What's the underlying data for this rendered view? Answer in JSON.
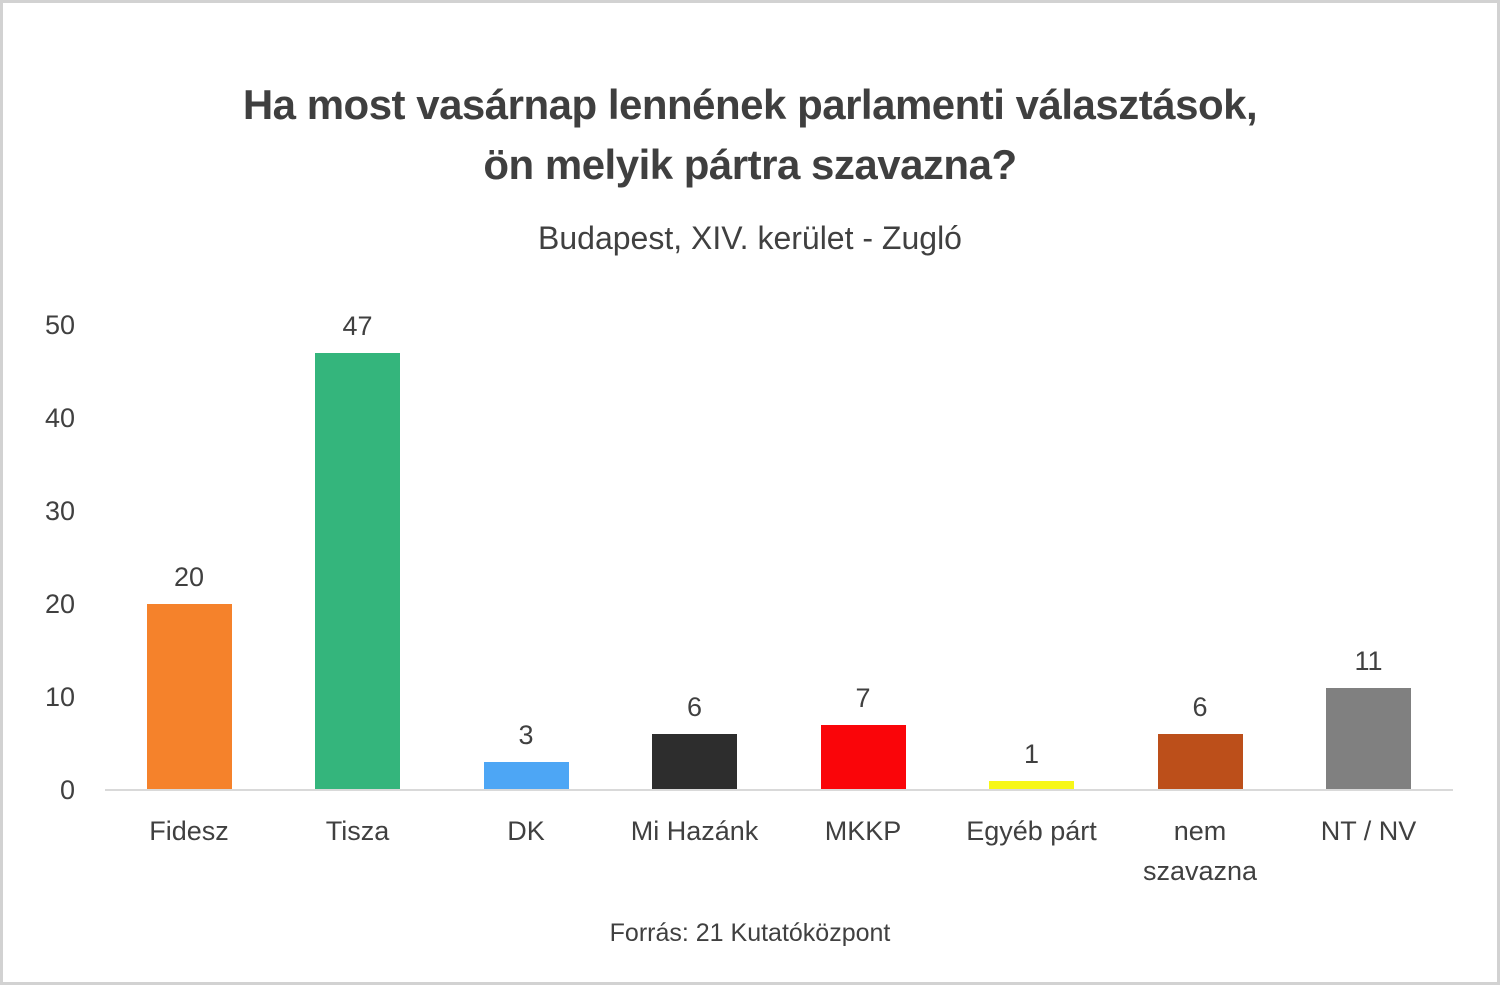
{
  "title": {
    "line1": "Ha most vasárnap lennének parlamenti választások,",
    "line2": "ön melyik pártra szavazna?"
  },
  "subtitle": "Budapest, XIV. kerület - Zugló",
  "footer": "Forrás: 21 Kutatóközpont",
  "colors": {
    "text": "#404040",
    "title_text": "#3f3f3f",
    "axis_line": "#d9d9d9",
    "page_border": "#d2d2d2"
  },
  "chart_data": {
    "type": "bar",
    "title": "Ha most vasárnap lennének parlamenti választások, ön melyik pártra szavazna?",
    "subtitle": "Budapest, XIV. kerület - Zugló",
    "source": "Forrás: 21 Kutatóközpont",
    "categories": [
      "Fidesz",
      "Tisza",
      "DK",
      "Mi Hazánk",
      "MKKP",
      "Egyéb párt",
      "nem szavazna",
      "NT / NV"
    ],
    "categories_display": [
      [
        "Fidesz"
      ],
      [
        "Tisza"
      ],
      [
        "DK"
      ],
      [
        "Mi Hazánk"
      ],
      [
        "MKKP"
      ],
      [
        "Egyéb párt"
      ],
      [
        "nem",
        "szavazna"
      ],
      [
        "NT / NV"
      ]
    ],
    "values": [
      20,
      47,
      3,
      6,
      7,
      1,
      6,
      11
    ],
    "bar_colors": [
      "#f5822b",
      "#34b57c",
      "#4da6f5",
      "#2d2d2d",
      "#fa0509",
      "#f7f718",
      "#bc4f1a",
      "#808080"
    ],
    "xlabel": "",
    "ylabel": "",
    "ylim": [
      0,
      50
    ],
    "y_ticks": [
      0,
      10,
      20,
      30,
      40,
      50
    ],
    "grid": false,
    "legend": false,
    "value_labels": true
  }
}
